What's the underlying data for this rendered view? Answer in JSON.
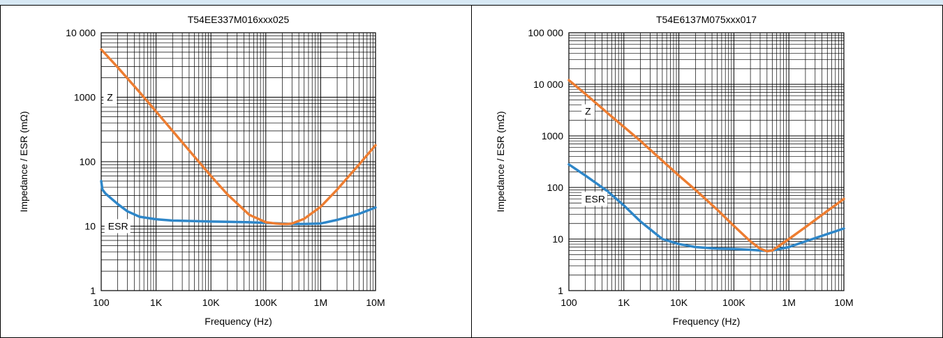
{
  "colors": {
    "z_series": "#ed7d31",
    "esr_series": "#2e86c8",
    "grid": "#000000",
    "band": "#d7e8f4"
  },
  "chart_data": [
    {
      "type": "line",
      "title": "T54EE337M016xxx025",
      "xlabel": "Frequency (Hz)",
      "ylabel": "Impedance / ESR (mΩ)",
      "x_scale": "log",
      "y_scale": "log",
      "xlim": [
        100,
        10000000
      ],
      "ylim": [
        1,
        10000
      ],
      "grid": true,
      "x_ticks": [
        {
          "value": 100,
          "label": "100"
        },
        {
          "value": 1000,
          "label": "1K"
        },
        {
          "value": 10000,
          "label": "10K"
        },
        {
          "value": 100000,
          "label": "100K"
        },
        {
          "value": 1000000,
          "label": "1M"
        },
        {
          "value": 10000000,
          "label": "10M"
        }
      ],
      "y_ticks": [
        {
          "value": 1,
          "label": "1"
        },
        {
          "value": 10,
          "label": "10"
        },
        {
          "value": 100,
          "label": "100"
        },
        {
          "value": 1000,
          "label": "1000"
        },
        {
          "value": 10000,
          "label": "10 000"
        }
      ],
      "series": [
        {
          "name": "Z",
          "label_at": [
            110,
            1000
          ],
          "x": [
            100,
            200,
            500,
            1000,
            2000,
            5000,
            10000,
            20000,
            50000,
            100000,
            150000,
            200000,
            250000,
            300000,
            500000,
            1000000,
            2000000,
            5000000,
            10000000
          ],
          "y": [
            5500,
            2900,
            1200,
            600,
            300,
            120,
            60,
            31,
            15,
            11.5,
            11,
            10.8,
            10.8,
            11,
            13,
            20,
            37,
            90,
            180
          ]
        },
        {
          "name": "ESR",
          "label_at": [
            115,
            10
          ],
          "x": [
            100,
            105,
            120,
            200,
            300,
            500,
            1000,
            2000,
            5000,
            10000,
            20000,
            50000,
            100000,
            200000,
            300000,
            500000,
            1000000,
            2000000,
            5000000,
            10000000
          ],
          "y": [
            50,
            37,
            32,
            22,
            17,
            14,
            12.8,
            12.2,
            12,
            11.8,
            11.7,
            11.5,
            11.2,
            11,
            10.8,
            10.8,
            11,
            12.5,
            15.5,
            19.5
          ]
        }
      ]
    },
    {
      "type": "line",
      "title": "T54E6137M075xxx017",
      "xlabel": "Frequency (Hz)",
      "ylabel": "Impedance / ESR (mΩ)",
      "x_scale": "log",
      "y_scale": "log",
      "xlim": [
        100,
        10000000
      ],
      "ylim": [
        1,
        100000
      ],
      "grid": true,
      "x_ticks": [
        {
          "value": 100,
          "label": "100"
        },
        {
          "value": 1000,
          "label": "1K"
        },
        {
          "value": 10000,
          "label": "10K"
        },
        {
          "value": 100000,
          "label": "100K"
        },
        {
          "value": 1000000,
          "label": "1M"
        },
        {
          "value": 10000000,
          "label": "10M"
        }
      ],
      "y_ticks": [
        {
          "value": 1,
          "label": "1"
        },
        {
          "value": 10,
          "label": "10"
        },
        {
          "value": 100,
          "label": "100"
        },
        {
          "value": 1000,
          "label": "1000"
        },
        {
          "value": 10000,
          "label": "10 000"
        },
        {
          "value": 100000,
          "label": "100 000"
        }
      ],
      "series": [
        {
          "name": "Z",
          "label_at": [
            170,
            3000
          ],
          "x": [
            100,
            200,
            500,
            1000,
            2000,
            5000,
            10000,
            20000,
            50000,
            100000,
            200000,
            300000,
            400000,
            500000,
            1000000,
            2000000,
            5000000,
            10000000
          ],
          "y": [
            12000,
            6500,
            2800,
            1500,
            800,
            330,
            170,
            90,
            37,
            18,
            9,
            6.5,
            5.8,
            6,
            10,
            17,
            35,
            60
          ]
        },
        {
          "name": "ESR",
          "label_at": [
            170,
            60
          ],
          "x": [
            100,
            200,
            500,
            1000,
            2000,
            5000,
            10000,
            20000,
            50000,
            100000,
            200000,
            300000,
            400000,
            500000,
            1000000,
            2000000,
            5000000,
            10000000
          ],
          "y": [
            280,
            170,
            85,
            45,
            22,
            10,
            8,
            7,
            6.5,
            6.4,
            6.2,
            6,
            5.9,
            6,
            7,
            9,
            12.5,
            16
          ]
        }
      ]
    }
  ]
}
